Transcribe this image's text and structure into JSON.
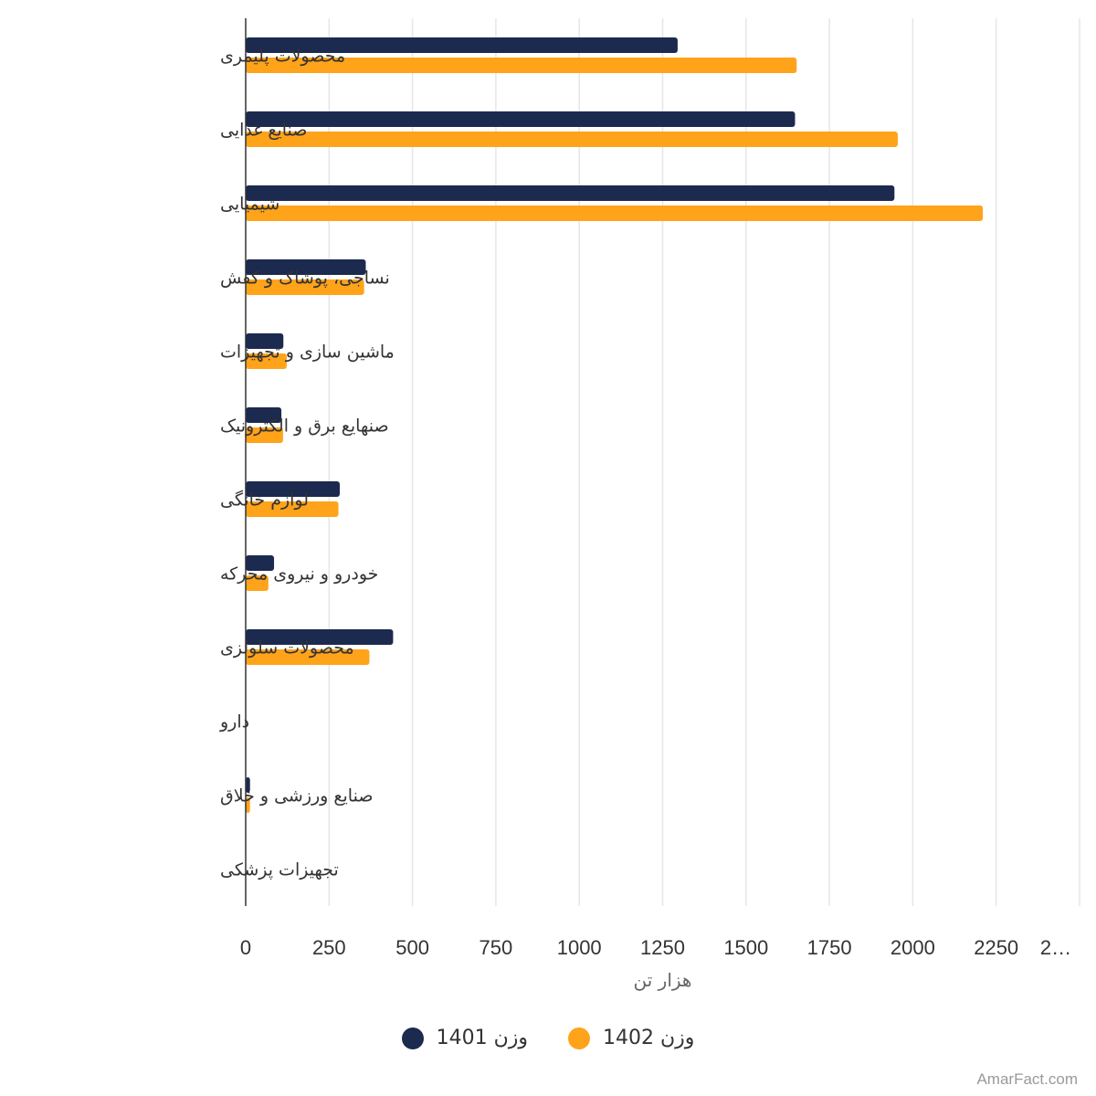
{
  "chart_data": {
    "type": "bar",
    "orientation": "horizontal",
    "categories": [
      "محصولات پلیمری",
      "صنایع غذایی",
      "شیمیایی",
      "نساجی، پوشاک و کفش",
      "ماشین سازی و تجهیزات",
      "صنهایع برق و الکترونیک",
      "لوازم خانگی",
      "خودرو و نیروی محرکه",
      "محصولات سلولزی",
      "دارو",
      "صنایع ورزشی و خلاق",
      "تجهیزات پزشکی"
    ],
    "series": [
      {
        "name": "وزن 1401",
        "color": "#1b2a4e",
        "values": [
          1295,
          1647,
          1945,
          360,
          113,
          107,
          282,
          85,
          442,
          0,
          13,
          0
        ]
      },
      {
        "name": "وزن 1402",
        "color": "#ffa31a",
        "values": [
          1652,
          1955,
          2210,
          355,
          123,
          112,
          278,
          68,
          371,
          0,
          13,
          0
        ]
      }
    ],
    "x_ticks": [
      "0",
      "250",
      "500",
      "750",
      "1000",
      "1250",
      "1500",
      "1750",
      "2000",
      "2250",
      "2…"
    ],
    "xlim": [
      0,
      2500
    ],
    "xlabel": "هزار تن",
    "grid": true,
    "legend_position": "bottom"
  },
  "credit": "AmarFact.com"
}
